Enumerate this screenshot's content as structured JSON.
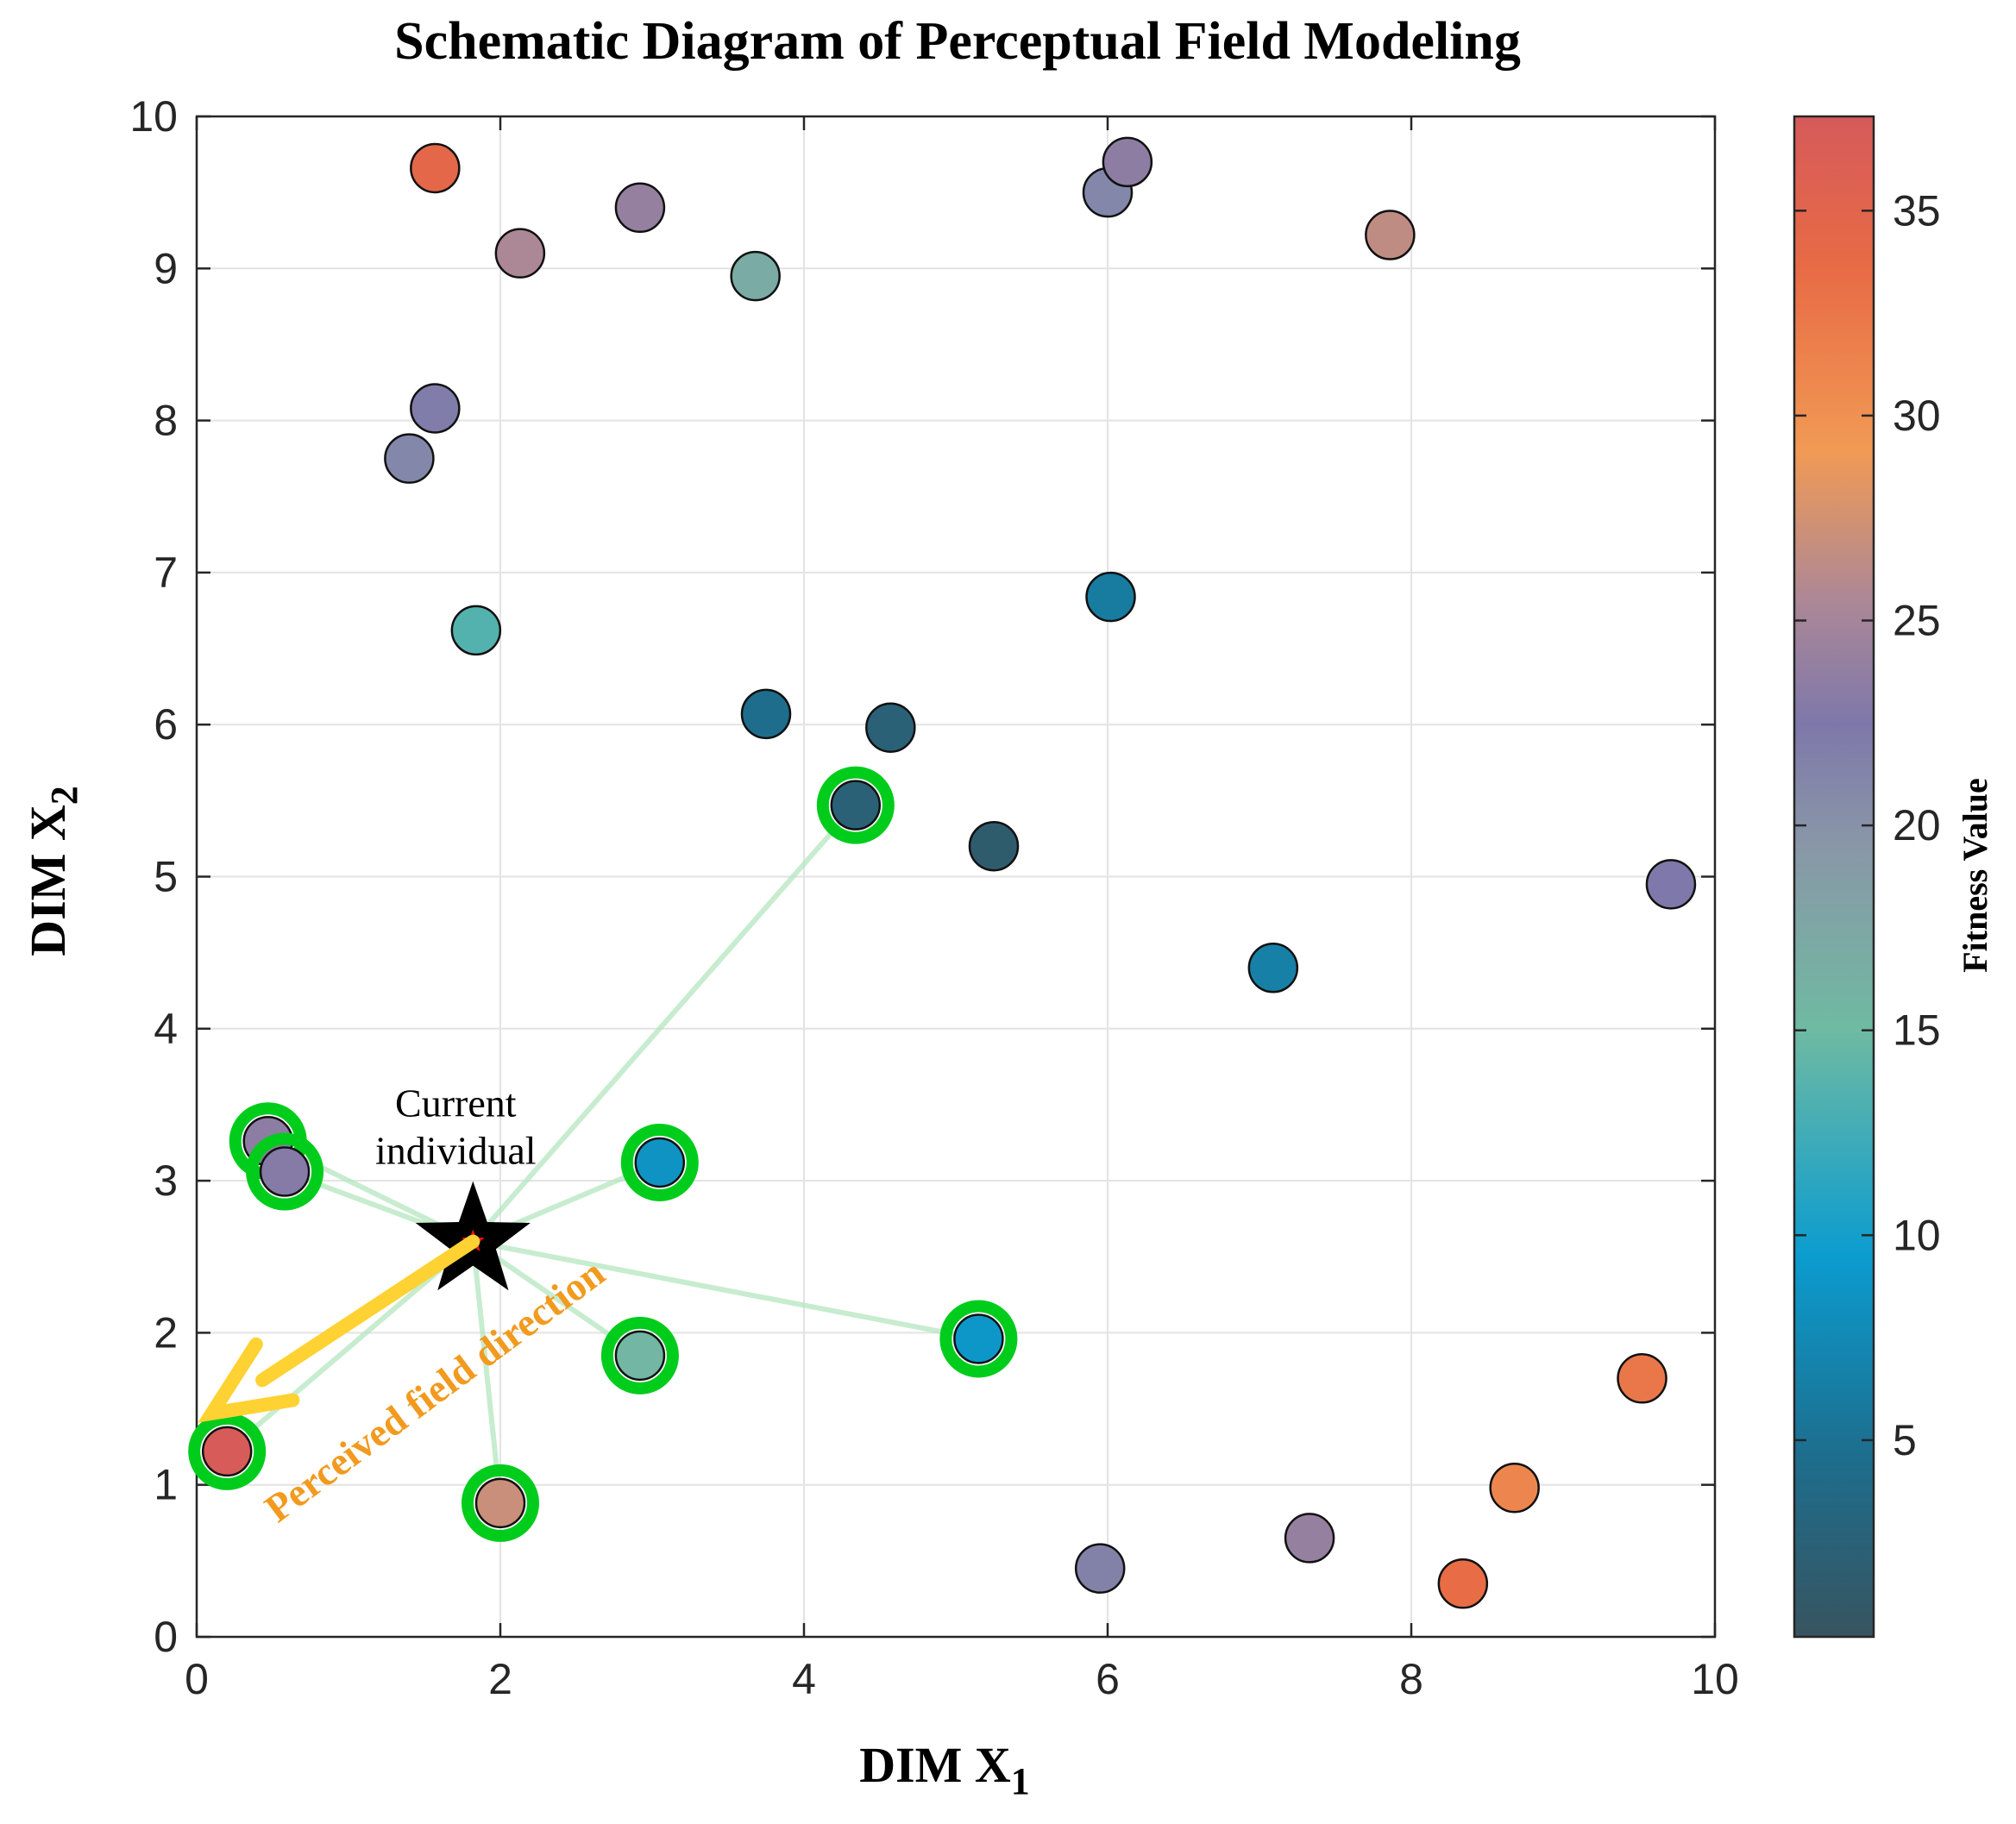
{
  "chart_data": {
    "type": "scatter",
    "title": "Schematic Diagram of Perceptual Field Modeling",
    "xlabel": "DIM X",
    "xlabel_sub": "1",
    "ylabel": "DIM X",
    "ylabel_sub": "2",
    "xlim": [
      0,
      10
    ],
    "ylim": [
      0,
      10
    ],
    "xticks": [
      0,
      2,
      4,
      6,
      8,
      10
    ],
    "yticks": [
      0,
      1,
      2,
      3,
      4,
      5,
      6,
      7,
      8,
      9,
      10
    ],
    "grid": true,
    "colorbar": {
      "label": "Fitness Value",
      "range": [
        0.2,
        37.3
      ],
      "ticks": [
        5,
        10,
        15,
        20,
        25,
        30,
        35
      ],
      "colormap": [
        [
          0.0,
          "#37545f"
        ],
        [
          0.12,
          "#1d6e8e"
        ],
        [
          0.25,
          "#0b9ccf"
        ],
        [
          0.4,
          "#6fbaa2"
        ],
        [
          0.52,
          "#8997a7"
        ],
        [
          0.6,
          "#7e78aa"
        ],
        [
          0.68,
          "#ab8797"
        ],
        [
          0.78,
          "#f19a55"
        ],
        [
          0.9,
          "#e86b45"
        ],
        [
          1.0,
          "#d65a5a"
        ]
      ]
    },
    "points": [
      {
        "x": 1.57,
        "y": 9.66,
        "fitness": 34.5,
        "neighbor": false
      },
      {
        "x": 2.13,
        "y": 9.1,
        "fitness": 25.5,
        "neighbor": false
      },
      {
        "x": 2.92,
        "y": 9.4,
        "fitness": 24.0,
        "neighbor": false
      },
      {
        "x": 3.68,
        "y": 8.95,
        "fitness": 17.0,
        "neighbor": false
      },
      {
        "x": 6.0,
        "y": 9.5,
        "fitness": 21.0,
        "neighbor": false
      },
      {
        "x": 6.13,
        "y": 9.7,
        "fitness": 23.5,
        "neighbor": false
      },
      {
        "x": 7.86,
        "y": 9.22,
        "fitness": 26.5,
        "neighbor": false
      },
      {
        "x": 1.57,
        "y": 8.08,
        "fitness": 22.0,
        "neighbor": false
      },
      {
        "x": 1.4,
        "y": 7.75,
        "fitness": 21.0,
        "neighbor": false
      },
      {
        "x": 1.84,
        "y": 6.62,
        "fitness": 13.5,
        "neighbor": false
      },
      {
        "x": 6.02,
        "y": 6.84,
        "fitness": 6.0,
        "neighbor": false
      },
      {
        "x": 3.75,
        "y": 6.07,
        "fitness": 4.5,
        "neighbor": false
      },
      {
        "x": 4.57,
        "y": 5.98,
        "fitness": 2.5,
        "neighbor": false
      },
      {
        "x": 5.25,
        "y": 5.2,
        "fitness": 1.5,
        "neighbor": false
      },
      {
        "x": 9.71,
        "y": 4.95,
        "fitness": 22.5,
        "neighbor": false
      },
      {
        "x": 7.09,
        "y": 4.4,
        "fitness": 6.5,
        "neighbor": false
      },
      {
        "x": 9.52,
        "y": 1.7,
        "fitness": 32.5,
        "neighbor": false
      },
      {
        "x": 8.68,
        "y": 0.98,
        "fitness": 31.0,
        "neighbor": false
      },
      {
        "x": 7.33,
        "y": 0.65,
        "fitness": 24.0,
        "neighbor": false
      },
      {
        "x": 5.95,
        "y": 0.45,
        "fitness": 21.5,
        "neighbor": false
      },
      {
        "x": 8.34,
        "y": 0.35,
        "fitness": 33.5,
        "neighbor": false
      },
      {
        "x": 4.34,
        "y": 5.47,
        "fitness": 2.5,
        "neighbor": true
      },
      {
        "x": 0.47,
        "y": 3.26,
        "fitness": 23.5,
        "neighbor": true
      },
      {
        "x": 0.58,
        "y": 3.06,
        "fitness": 23.0,
        "neighbor": true
      },
      {
        "x": 3.05,
        "y": 3.12,
        "fitness": 8.5,
        "neighbor": true
      },
      {
        "x": 5.15,
        "y": 1.96,
        "fitness": 9.0,
        "neighbor": true
      },
      {
        "x": 2.92,
        "y": 1.85,
        "fitness": 15.5,
        "neighbor": true
      },
      {
        "x": 0.2,
        "y": 1.22,
        "fitness": 37.0,
        "neighbor": true
      },
      {
        "x": 2.0,
        "y": 0.88,
        "fitness": 27.0,
        "neighbor": true
      }
    ],
    "current_individual": {
      "x": 1.82,
      "y": 2.6,
      "label_line1": "Current",
      "label_line2": "individual"
    },
    "perceived_direction": {
      "from": [
        1.82,
        2.6
      ],
      "to": [
        0.1,
        1.47
      ],
      "label": "Perceived field direction"
    }
  }
}
